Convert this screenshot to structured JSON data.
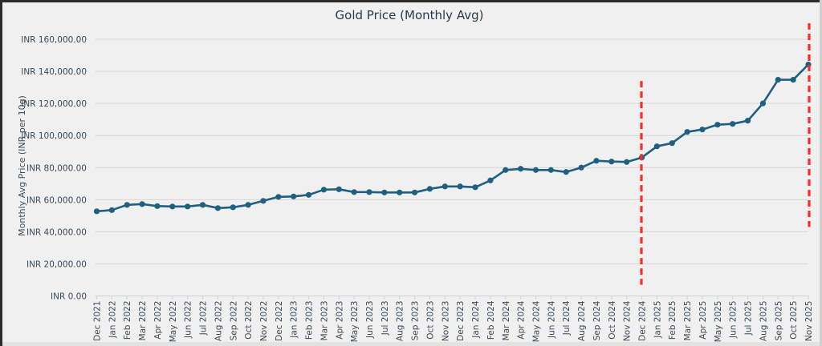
{
  "chart_data": {
    "type": "line",
    "title": "Gold Price (Monthly Avg)",
    "xlabel": "",
    "ylabel": "Monthly Avg Price (INR per 10g)",
    "ylim": [
      0,
      160000
    ],
    "yticks": [
      0,
      20000,
      40000,
      60000,
      80000,
      100000,
      120000,
      140000,
      160000
    ],
    "ytick_labels": [
      "INR 0.00",
      "INR 20,000.00",
      "INR 40,000.00",
      "INR 60,000.00",
      "INR 80,000.00",
      "INR 100,000.00",
      "INR 120,000.00",
      "INR 140,000.00",
      "INR 160,000.00"
    ],
    "grid": true,
    "legend": "none",
    "categories": [
      "Dec 2021",
      "Jan 2022",
      "Feb 2022",
      "Mar 2022",
      "Apr 2022",
      "May 2022",
      "Jun 2022",
      "Jul 2022",
      "Aug 2022",
      "Sep 2022",
      "Oct 2022",
      "Nov 2022",
      "Dec 2022",
      "Jan 2023",
      "Feb 2023",
      "Mar 2023",
      "Apr 2023",
      "May 2023",
      "Jun 2023",
      "Jul 2023",
      "Aug 2023",
      "Sep 2023",
      "Oct 2023",
      "Nov 2023",
      "Dec 2023",
      "Jan 2024",
      "Feb 2024",
      "Mar 2024",
      "Apr 2024",
      "May 2024",
      "Jun 2024",
      "Jul 2024",
      "Aug 2024",
      "Sep 2024",
      "Oct 2024",
      "Nov 2024",
      "Dec 2024",
      "Jan 2025",
      "Feb 2025",
      "Mar 2025",
      "Apr 2025",
      "May 2025",
      "Jun 2025",
      "Jul 2025",
      "Aug 2025",
      "Sep 2025",
      "Oct 2025",
      "Nov 2025"
    ],
    "series": [
      {
        "name": "Monthly Avg Price",
        "color": "#1f5f80",
        "values": [
          52750,
          53500,
          56750,
          57250,
          56000,
          55750,
          55750,
          56750,
          54750,
          55250,
          56750,
          59250,
          61750,
          62000,
          63000,
          66250,
          66500,
          64750,
          64750,
          64500,
          64500,
          64500,
          66750,
          68250,
          68250,
          67750,
          72000,
          78500,
          79250,
          78500,
          78500,
          77250,
          80000,
          84250,
          83750,
          83500,
          86250,
          93250,
          95250,
          102250,
          103750,
          106750,
          107250,
          109250,
          120000,
          134750,
          134750,
          144250
        ]
      }
    ],
    "annotations": [
      {
        "type": "vertical-dashed-line",
        "at": "Dec 2024",
        "color": "#ff2a2a",
        "y_range": [
          7000,
          134000
        ]
      },
      {
        "type": "vertical-dashed-line",
        "at": "Nov 2025",
        "color": "#ff2a2a",
        "y_range": [
          43000,
          170000
        ]
      }
    ]
  }
}
